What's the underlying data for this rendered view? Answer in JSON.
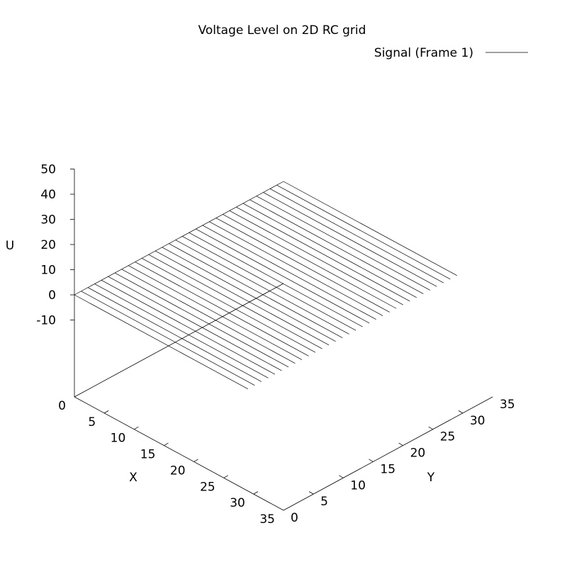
{
  "chart_data": {
    "type": "surface3d",
    "title": "Voltage Level on 2D RC grid",
    "xlabel": "X",
    "ylabel": "Y",
    "zlabel": "U",
    "xlim": [
      0,
      35
    ],
    "ylim": [
      0,
      35
    ],
    "zlim": [
      -10,
      50
    ],
    "xticks": [
      "0",
      "5",
      "10",
      "15",
      "20",
      "25",
      "30",
      "35"
    ],
    "yticks": [
      "0",
      "5",
      "10",
      "15",
      "20",
      "25",
      "30",
      "35"
    ],
    "zticks": [
      "50",
      "40",
      "30",
      "20",
      "10",
      "0",
      "-10"
    ],
    "z_constant": 0,
    "line_count": 32,
    "grid": false,
    "legend": "top-right",
    "series": [
      {
        "name": "Signal (Frame 1)",
        "color": "#000000"
      }
    ]
  }
}
